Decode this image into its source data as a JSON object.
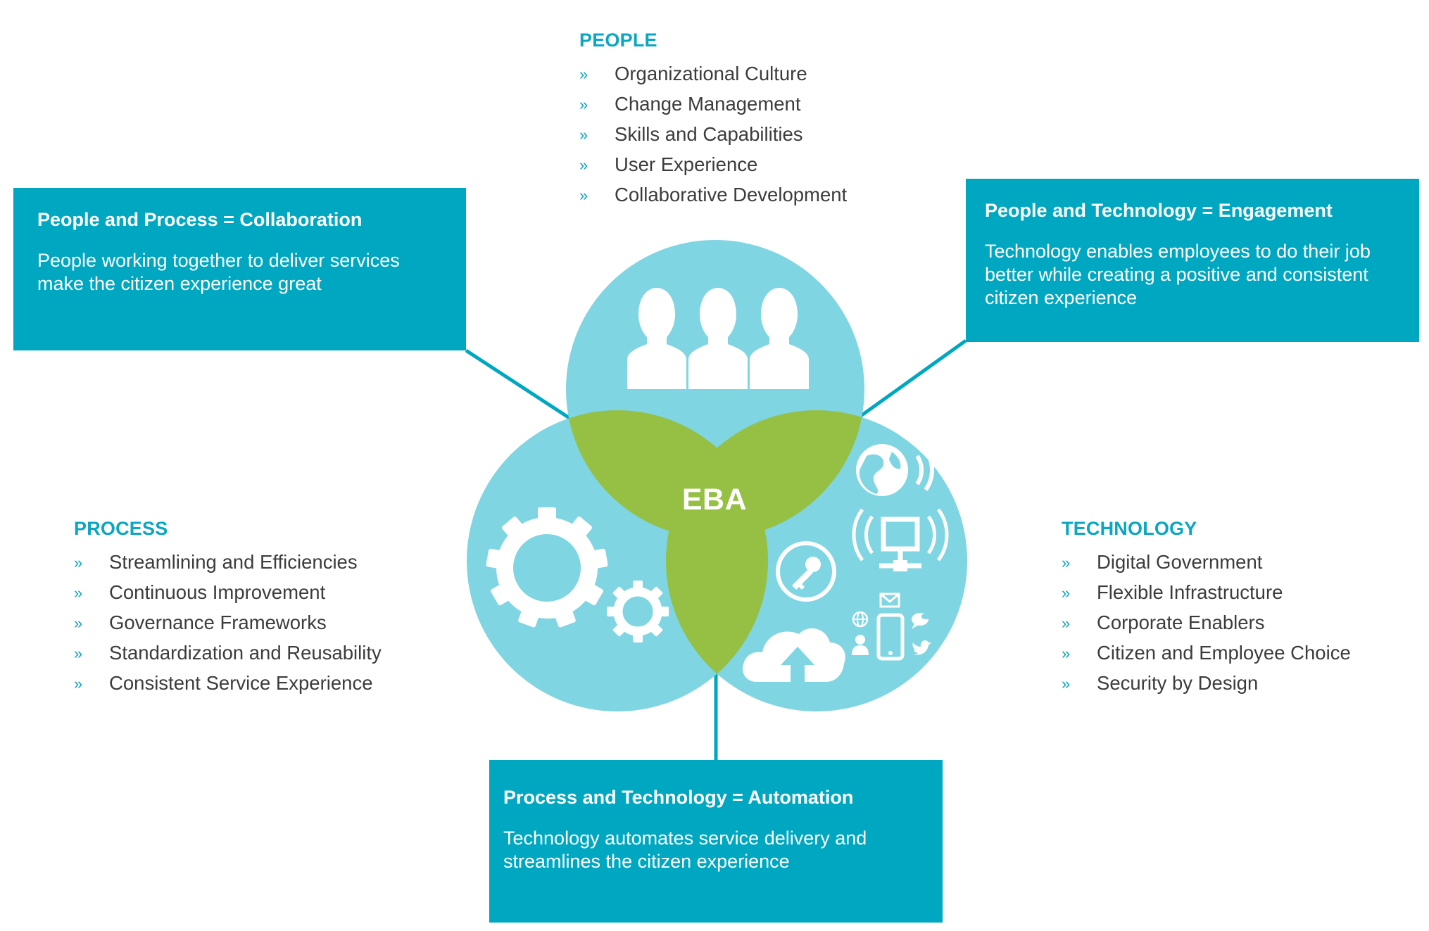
{
  "colors": {
    "accent": "#00a7c1",
    "circle": "#7fd5e2",
    "overlap": "#95c043",
    "icon": "#ffffff",
    "list_text": "#3c3c3c"
  },
  "center_label": "EBA",
  "sections": {
    "people": {
      "title": "PEOPLE",
      "items": [
        "Organizational Culture",
        "Change Management",
        "Skills and Capabilities",
        "User Experience",
        "Collaborative Development"
      ]
    },
    "process": {
      "title": "PROCESS",
      "items": [
        "Streamlining and Efficiencies",
        "Continuous Improvement",
        "Governance Frameworks",
        "Standardization and Reusability",
        "Consistent Service Experience"
      ]
    },
    "technology": {
      "title": "TECHNOLOGY",
      "items": [
        "Digital Government",
        "Flexible Infrastructure",
        "Corporate Enablers",
        "Citizen and Employee Choice",
        "Security by Design"
      ]
    }
  },
  "bullet_glyph": "»",
  "callouts": {
    "collaboration": {
      "title": "People and Process = Collaboration",
      "body": "People working together to deliver services\nmake the citizen experience great"
    },
    "engagement": {
      "title": "People and Technology = Engagement",
      "body": "Technology enables employees to do their job\nbetter while creating a positive and consistent\ncitizen experience"
    },
    "automation": {
      "title": "Process and Technology = Automation",
      "body": "Technology automates service delivery and\nstreamlines the citizen experience"
    }
  },
  "icons": {
    "people_circle": [
      "user-icon",
      "user-icon",
      "user-icon"
    ],
    "process_circle": [
      "gear-icon",
      "gear-icon"
    ],
    "technology_circle": [
      "globe-icon",
      "network-icon",
      "key-icon",
      "cloud-upload-icon",
      "mail-icon",
      "smartphone-icon",
      "chat-icon",
      "twitter-icon",
      "person-icon"
    ]
  }
}
